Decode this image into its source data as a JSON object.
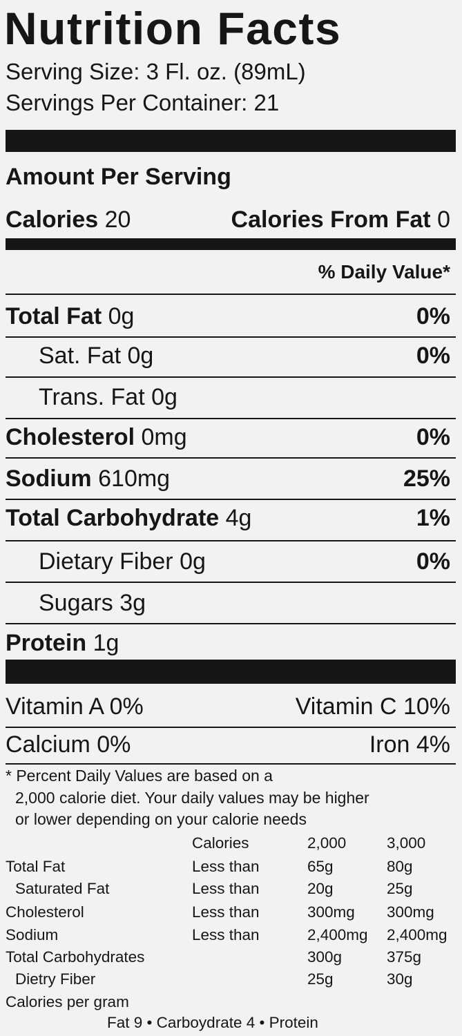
{
  "title": "Nutrition Facts",
  "serving_size": "Serving Size: 3 Fl. oz. (89mL)",
  "servings_per_container": "Servings Per Container: 21",
  "amount_per_serving": "Amount Per Serving",
  "calories": {
    "label": "Calories",
    "value": "20"
  },
  "calories_from_fat": {
    "label": "Calories From Fat",
    "value": "0"
  },
  "daily_value_header": "% Daily Value*",
  "nutrients": [
    {
      "name": "Total Fat",
      "amount": "0g",
      "dv": "0%"
    },
    {
      "name": "Sat. Fat",
      "amount": "0g",
      "dv": "0%"
    },
    {
      "name": "Trans. Fat",
      "amount": "0g"
    },
    {
      "name": "Cholesterol",
      "amount": "0mg",
      "dv": "0%"
    },
    {
      "name": "Sodium",
      "amount": "610mg",
      "dv": "25%"
    },
    {
      "name": "Total Carbohydrate",
      "amount": "4g",
      "dv": "1%"
    },
    {
      "name": "Dietary Fiber",
      "amount": "0g",
      "dv": "0%"
    },
    {
      "name": "Sugars",
      "amount": "3g"
    },
    {
      "name": "Protein",
      "amount": "1g"
    }
  ],
  "vitamins": [
    [
      "Vitamin A 0%",
      "Vitamin C 10%"
    ],
    [
      "Calcium 0%",
      "Iron 4%"
    ]
  ],
  "footnote": [
    "* Percent Daily Values are based on a",
    "2,000 calorie diet. Your daily values may be higher",
    "or lower depending on your calorie needs"
  ],
  "reference_table": {
    "header": [
      "Calories",
      "2,000",
      "3,000"
    ],
    "rows": [
      {
        "label": "Total Fat",
        "qualifier": "Less than",
        "v2000": "65g",
        "v3000": "80g"
      },
      {
        "label": "Saturated Fat",
        "qualifier": "Less than",
        "v2000": "20g",
        "v3000": "25g"
      },
      {
        "label": "Cholesterol",
        "qualifier": "Less than",
        "v2000": "300mg",
        "v3000": "300mg"
      },
      {
        "label": "Sodium",
        "qualifier": "Less than",
        "v2000": "2,400mg",
        "v3000": "2,400mg"
      },
      {
        "label": "Total Carbohydrates",
        "v2000": "300g",
        "v3000": "375g"
      },
      {
        "label": "Dietry Fiber",
        "v2000": "25g",
        "v3000": "30g"
      }
    ]
  },
  "calories_per_gram": {
    "label": "Calories per gram",
    "values": "Fat 9 • Carboydrate 4 • Protein"
  }
}
